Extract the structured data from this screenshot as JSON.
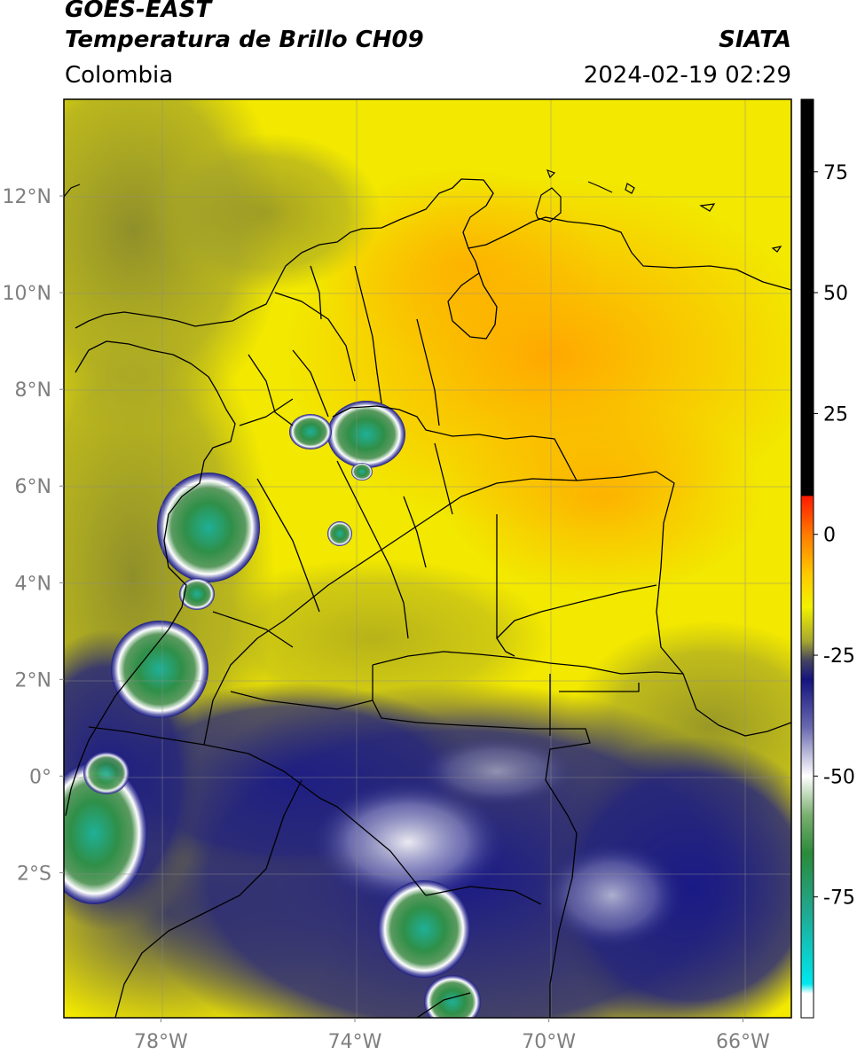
{
  "header": {
    "satellite": "GOES-EAST",
    "product": "Temperatura de Brillo CH09",
    "organization": "SIATA",
    "region": "Colombia",
    "datetime": "2024-02-19 02:29"
  },
  "axes": {
    "lat_ticks": [
      {
        "value": 12,
        "label": "12°N"
      },
      {
        "value": 10,
        "label": "10°N"
      },
      {
        "value": 8,
        "label": "8°N"
      },
      {
        "value": 6,
        "label": "6°N"
      },
      {
        "value": 4,
        "label": "4°N"
      },
      {
        "value": 2,
        "label": "2°N"
      },
      {
        "value": 0,
        "label": "0°"
      },
      {
        "value": -2,
        "label": "2°S"
      }
    ],
    "lon_ticks": [
      {
        "value": -78,
        "label": "78°W"
      },
      {
        "value": -74,
        "label": "74°W"
      },
      {
        "value": -70,
        "label": "70°W"
      },
      {
        "value": -66,
        "label": "66°W"
      }
    ],
    "lon_range": [
      -80,
      -65
    ],
    "lat_range": [
      -5,
      14
    ]
  },
  "colorbar": {
    "ticks": [
      {
        "value": 75,
        "label": "75"
      },
      {
        "value": 50,
        "label": "50"
      },
      {
        "value": 25,
        "label": "25"
      },
      {
        "value": 0,
        "label": "0"
      },
      {
        "value": -25,
        "label": "-25"
      },
      {
        "value": -50,
        "label": "-50"
      },
      {
        "value": -75,
        "label": "-75"
      }
    ],
    "range": [
      -100,
      90
    ],
    "stops": [
      {
        "v": 90,
        "color": "#000000"
      },
      {
        "v": 8,
        "color": "#000000"
      },
      {
        "v": 7.9,
        "color": "#ff1a00"
      },
      {
        "v": 0,
        "color": "#ff7a00"
      },
      {
        "v": -8,
        "color": "#ffc800"
      },
      {
        "v": -15,
        "color": "#f2f200"
      },
      {
        "v": -22,
        "color": "#a8a830"
      },
      {
        "v": -26,
        "color": "#454560"
      },
      {
        "v": -30,
        "color": "#14147e"
      },
      {
        "v": -40,
        "color": "#6a6ab0"
      },
      {
        "v": -50,
        "color": "#ffffff"
      },
      {
        "v": -58,
        "color": "#7ab070"
      },
      {
        "v": -66,
        "color": "#2b8a3a"
      },
      {
        "v": -78,
        "color": "#20a890"
      },
      {
        "v": -93,
        "color": "#00e8ee"
      },
      {
        "v": -95,
        "color": "#ffffff"
      },
      {
        "v": -100,
        "color": "#ffffff"
      }
    ]
  },
  "colors": {
    "warm_orange": "#ffb000",
    "yellow": "#f2e800",
    "olive": "#a9a820",
    "dark_slate": "#4b4b52",
    "navy": "#14147e",
    "white_cloud": "#ffffff",
    "green_core": "#2e8e48",
    "cyan_core": "#1fb59d"
  }
}
